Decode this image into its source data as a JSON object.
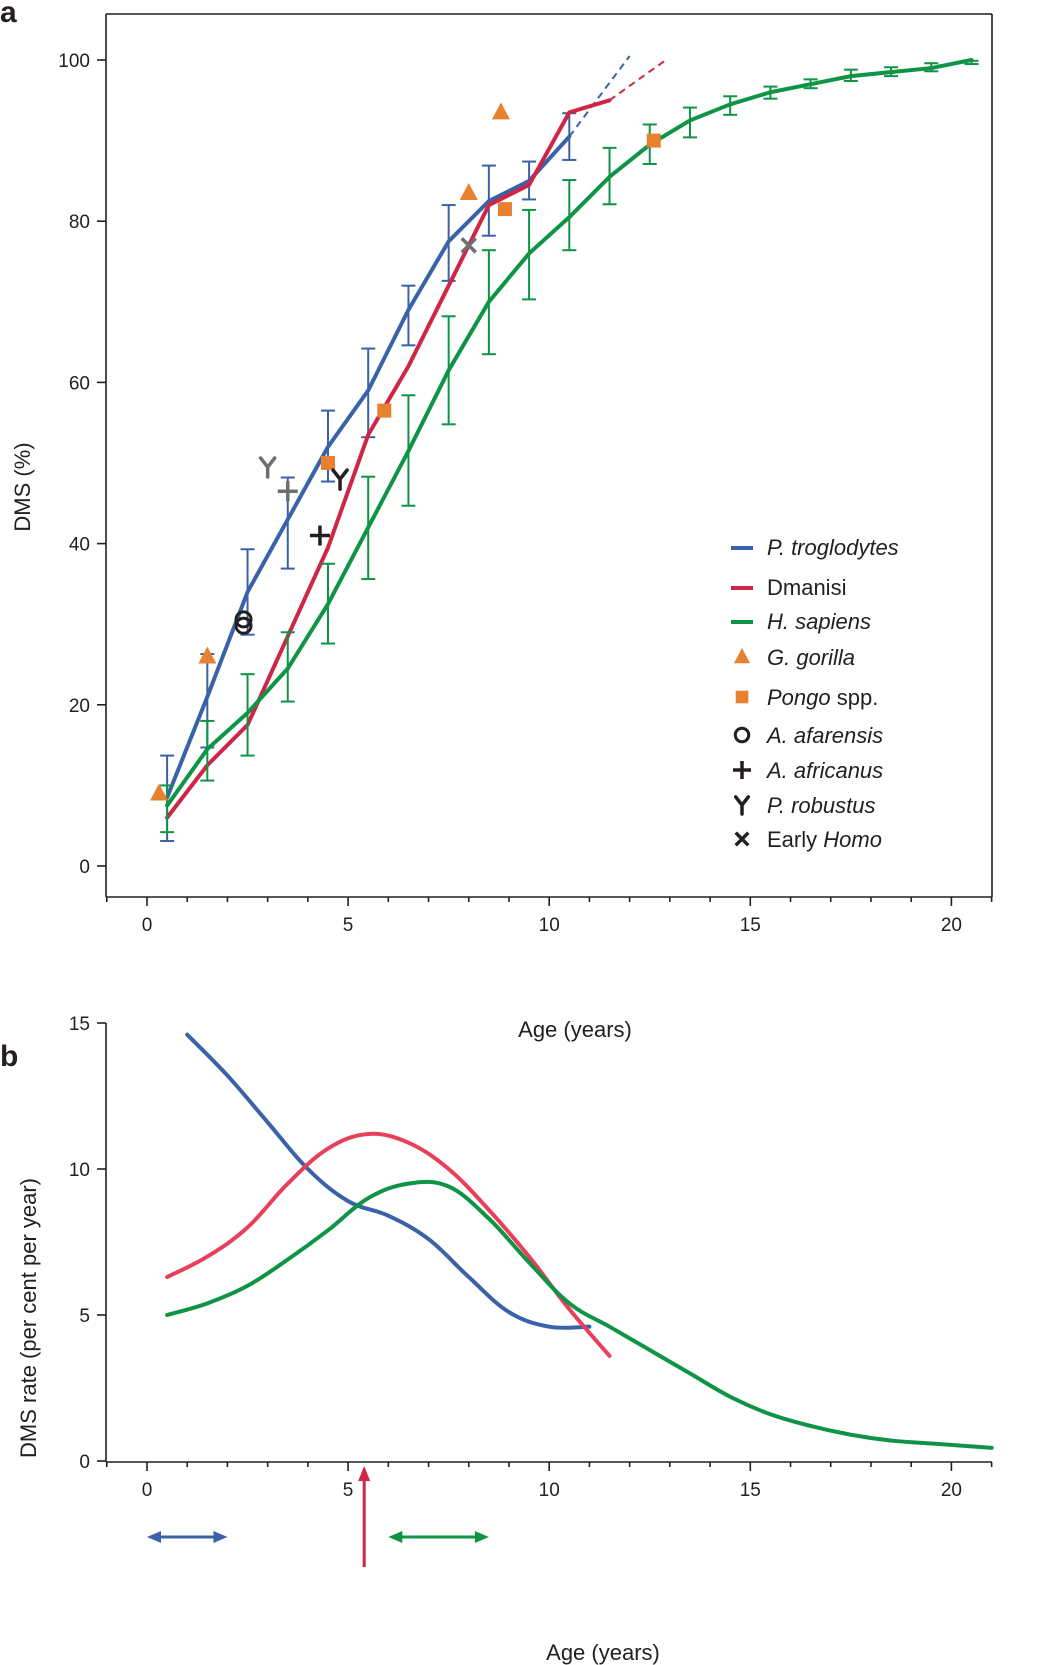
{
  "colors": {
    "troglodytes": "#3a62a8",
    "dmanisi": "#cf2546",
    "sapiens": "#0e9444",
    "gorilla": "#e8812f",
    "pongo": "#e8812f",
    "fossil_black": "#231f20",
    "fossil_grey": "#6d6e71",
    "dmanisi_rate": "#e8405a"
  },
  "chart_data": [
    {
      "panel": "a",
      "type": "line",
      "xlabel": "Age (years)",
      "ylabel": "DMS (%)",
      "xlim": [
        -1,
        21
      ],
      "ylim": [
        -5,
        105
      ],
      "xticks": [
        0,
        5,
        10,
        15,
        20
      ],
      "yticks": [
        0,
        20,
        40,
        60,
        80,
        100
      ],
      "legend_position": "lower-right",
      "legend": [
        {
          "label": "P. troglodytes",
          "italic": true,
          "marker": "line",
          "color": "troglodytes"
        },
        {
          "label": "Dmanisi",
          "italic": false,
          "marker": "line",
          "color": "dmanisi"
        },
        {
          "label": "H. sapiens",
          "italic": true,
          "marker": "line",
          "color": "sapiens"
        },
        {
          "label": "G. gorilla",
          "italic": true,
          "marker": "triangle",
          "color": "gorilla"
        },
        {
          "label": "Pongo",
          "italic": true,
          "suffix": " spp.",
          "marker": "square",
          "color": "pongo"
        },
        {
          "label": "A. afarensis",
          "italic": true,
          "marker": "circle",
          "color": "fossil_black"
        },
        {
          "label": "A. africanus",
          "italic": true,
          "marker": "plus",
          "color": "fossil_black"
        },
        {
          "label": "P. robustus",
          "italic": true,
          "marker": "y",
          "color": "fossil_black"
        },
        {
          "label": "Early ",
          "italic": false,
          "suffix_italic": "Homo",
          "marker": "x",
          "color": "fossil_black"
        }
      ],
      "series": [
        {
          "key": "troglodytes",
          "color": "troglodytes",
          "x": [
            0.5,
            1.5,
            2.5,
            3.5,
            4.5,
            5.5,
            6.5,
            7.5,
            8.5,
            9.5,
            10.5
          ],
          "y": [
            8.5,
            21,
            34,
            43,
            52,
            59,
            69,
            77.5,
            82.5,
            85,
            90.5
          ],
          "err_low": [
            3.1,
            14.7,
            28.7,
            36.9,
            47.7,
            53.2,
            64.6,
            72.6,
            78.2,
            82.7,
            87.6
          ],
          "err_high": [
            13.7,
            26.3,
            39.3,
            48.2,
            56.5,
            64.2,
            72.0,
            82.0,
            86.9,
            87.4,
            93.4
          ],
          "dashed_x": [
            10.5,
            12.0
          ],
          "dashed_y": [
            90.5,
            100.5
          ]
        },
        {
          "key": "dmanisi",
          "color": "dmanisi",
          "x": [
            0.5,
            1.5,
            2.5,
            3.5,
            4.5,
            5.5,
            6.5,
            7.5,
            8.5,
            9.5,
            10.5,
            11.5
          ],
          "y": [
            6,
            12.5,
            17.5,
            28.5,
            39.5,
            53.5,
            62,
            72,
            82,
            84.5,
            93.5,
            95
          ],
          "dashed_x": [
            11.5,
            12.9
          ],
          "dashed_y": [
            95,
            100
          ]
        },
        {
          "key": "sapiens",
          "color": "sapiens",
          "x": [
            0.5,
            1.5,
            2.5,
            3.5,
            4.5,
            5.5,
            6.5,
            7.5,
            8.5,
            9.5,
            10.5,
            11.5,
            12.5,
            13.5,
            14.5,
            15.5,
            16.5,
            17.5,
            18.5,
            19.5,
            20.5
          ],
          "y": [
            7.5,
            14.5,
            19,
            24.5,
            32.5,
            42,
            51.5,
            61.5,
            70,
            76,
            80.5,
            85.5,
            89.5,
            92.5,
            94.5,
            96,
            97,
            98,
            98.5,
            99,
            100
          ],
          "err_low": [
            4.2,
            10.6,
            13.7,
            20.4,
            27.6,
            35.6,
            44.7,
            54.8,
            63.5,
            70.3,
            76.4,
            82.1,
            87.1,
            90.4,
            93.2,
            95.2,
            96.5,
            97.4,
            98.0,
            98.6,
            99.5
          ],
          "err_high": [
            10.0,
            18.0,
            23.8,
            29.0,
            37.5,
            48.3,
            58.4,
            68.2,
            76.4,
            81.4,
            85.1,
            89.1,
            92.0,
            94.1,
            95.5,
            96.7,
            97.6,
            98.8,
            99.1,
            99.6,
            99.9
          ]
        }
      ],
      "points": [
        {
          "group": "gorilla",
          "marker": "triangle",
          "x": [
            0.3,
            1.5,
            8.0,
            8.8
          ],
          "y": [
            9,
            26,
            83.5,
            93.5
          ]
        },
        {
          "group": "pongo",
          "marker": "square",
          "x": [
            4.5,
            5.9,
            8.9,
            12.6
          ],
          "y": [
            50,
            56.5,
            81.5,
            90
          ]
        },
        {
          "group": "afarensis",
          "marker": "circle",
          "x": [
            2.4,
            2.4
          ],
          "y": [
            30.6,
            29.8
          ]
        },
        {
          "group": "africanus",
          "marker": "plus",
          "x": [
            4.3
          ],
          "y": [
            41
          ]
        },
        {
          "group": "robustus_grey",
          "marker": "y",
          "x": [
            3.0
          ],
          "y": [
            49.5
          ]
        },
        {
          "group": "robustus",
          "marker": "y",
          "x": [
            4.8
          ],
          "y": [
            48
          ]
        },
        {
          "group": "robustus_cross_grey",
          "marker": "plus",
          "x": [
            3.5
          ],
          "y": [
            46.5
          ]
        },
        {
          "group": "early_homo",
          "marker": "x",
          "x": [
            8.0
          ],
          "y": [
            77
          ]
        }
      ]
    },
    {
      "panel": "b",
      "type": "line",
      "xlabel": "Age (years)",
      "ylabel": "DMS rate (per cent per year)",
      "xlim": [
        -1,
        21
      ],
      "ylim": [
        0,
        15
      ],
      "xticks": [
        0,
        5,
        10,
        15,
        20
      ],
      "yticks": [
        0,
        5,
        10,
        15
      ],
      "series": [
        {
          "key": "troglodytes",
          "color": "troglodytes",
          "x": [
            1.0,
            2.0,
            3.0,
            4.0,
            5.0,
            6.0,
            7.0,
            8.0,
            9.0,
            10.0,
            11.0
          ],
          "y": [
            14.6,
            13.2,
            11.6,
            10.0,
            8.9,
            8.4,
            7.6,
            6.3,
            5.1,
            4.6,
            4.6
          ]
        },
        {
          "key": "dmanisi",
          "color": "dmanisi_rate",
          "x": [
            0.5,
            1.5,
            2.5,
            3.5,
            4.5,
            5.5,
            6.5,
            7.5,
            8.5,
            9.5,
            10.5,
            11.5
          ],
          "y": [
            6.3,
            7.0,
            8.0,
            9.5,
            10.7,
            11.2,
            10.9,
            10.0,
            8.6,
            7.0,
            5.2,
            3.6
          ]
        },
        {
          "key": "sapiens",
          "color": "sapiens",
          "x": [
            0.5,
            1.5,
            2.5,
            3.5,
            4.5,
            5.5,
            6.5,
            7.5,
            8.5,
            9.5,
            10.5,
            11.5,
            12.5,
            13.5,
            14.5,
            15.5,
            16.5,
            17.5,
            18.5,
            19.5,
            20.5,
            21.0
          ],
          "y": [
            5.0,
            5.4,
            6.0,
            6.9,
            7.9,
            9.0,
            9.5,
            9.4,
            8.3,
            6.8,
            5.4,
            4.6,
            3.8,
            3.0,
            2.2,
            1.6,
            1.2,
            0.9,
            0.7,
            0.6,
            0.5,
            0.45
          ]
        }
      ],
      "annotations": [
        {
          "type": "double-arrow",
          "color": "troglodytes",
          "x": [
            0.0,
            2.0
          ]
        },
        {
          "type": "up-arrow",
          "color": "dmanisi",
          "x": 5.4
        },
        {
          "type": "double-arrow",
          "color": "sapiens",
          "x": [
            6.0,
            8.5
          ]
        }
      ]
    }
  ]
}
